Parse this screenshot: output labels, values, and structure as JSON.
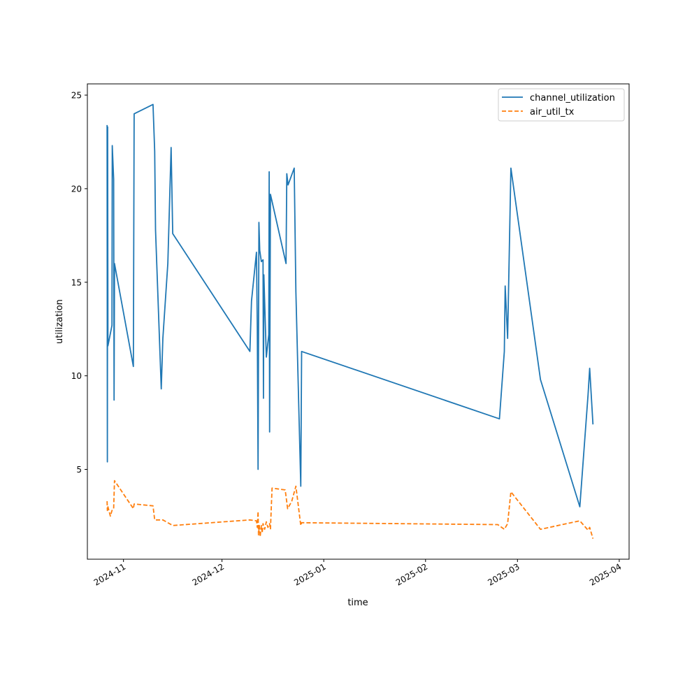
{
  "chart_data": {
    "type": "line",
    "title": "",
    "xlabel": "time",
    "ylabel": "utilization",
    "xlim": [
      "2024-10-21",
      "2025-04-04"
    ],
    "ylim": [
      0.2,
      25.6
    ],
    "x_ticks": [
      {
        "date": "2024-11-01",
        "label": "2024-11"
      },
      {
        "date": "2024-12-01",
        "label": "2024-12"
      },
      {
        "date": "2025-01-01",
        "label": "2025-01"
      },
      {
        "date": "2025-02-01",
        "label": "2025-02"
      },
      {
        "date": "2025-03-01",
        "label": "2025-03"
      },
      {
        "date": "2025-04-01",
        "label": "2025-04"
      }
    ],
    "y_ticks": [
      5,
      10,
      15,
      20,
      25
    ],
    "grid": false,
    "legend_position": "top-right",
    "series": [
      {
        "name": "channel_utilization",
        "color": "#1f77b4",
        "style": "solid",
        "points": [
          [
            "2024-10-27T00:00",
            23.4
          ],
          [
            "2024-10-27T02:00",
            5.4
          ],
          [
            "2024-10-27T04:00",
            23.3
          ],
          [
            "2024-10-27T06:00",
            11.6
          ],
          [
            "2024-10-28T12:00",
            12.7
          ],
          [
            "2024-10-28T14:00",
            22.3
          ],
          [
            "2024-10-29T00:00",
            20.5
          ],
          [
            "2024-10-29T03:00",
            8.7
          ],
          [
            "2024-10-29T06:00",
            16.0
          ],
          [
            "2024-11-04T00:00",
            10.5
          ],
          [
            "2024-11-04T06:00",
            24.0
          ],
          [
            "2024-11-10T00:00",
            24.5
          ],
          [
            "2024-11-10T12:00",
            22.0
          ],
          [
            "2024-11-10T18:00",
            17.8
          ],
          [
            "2024-11-12T12:00",
            9.3
          ],
          [
            "2024-11-13T00:00",
            12.0
          ],
          [
            "2024-11-14T12:00",
            16.0
          ],
          [
            "2024-11-15T12:00",
            22.2
          ],
          [
            "2024-11-16T00:00",
            17.6
          ],
          [
            "2024-12-09T12:00",
            11.3
          ],
          [
            "2024-12-10T00:00",
            14.0
          ],
          [
            "2024-12-11T12:00",
            16.6
          ],
          [
            "2024-12-11T18:00",
            12.6
          ],
          [
            "2024-12-12T00:00",
            5.0
          ],
          [
            "2024-12-12T06:00",
            18.2
          ],
          [
            "2024-12-12T12:00",
            16.7
          ],
          [
            "2024-12-13T00:00",
            16.1
          ],
          [
            "2024-12-13T12:00",
            16.2
          ],
          [
            "2024-12-13T15:00",
            8.8
          ],
          [
            "2024-12-13T18:00",
            15.4
          ],
          [
            "2024-12-14T00:00",
            14.0
          ],
          [
            "2024-12-14T12:00",
            11.0
          ],
          [
            "2024-12-15T06:00",
            12.2
          ],
          [
            "2024-12-15T09:00",
            20.9
          ],
          [
            "2024-12-15T12:00",
            7.0
          ],
          [
            "2024-12-15T18:00",
            19.7
          ],
          [
            "2024-12-20T12:00",
            16.0
          ],
          [
            "2024-12-20T18:00",
            20.8
          ],
          [
            "2024-12-21T03:00",
            20.2
          ],
          [
            "2024-12-23T00:00",
            21.1
          ],
          [
            "2024-12-23T12:00",
            14.5
          ],
          [
            "2024-12-25T00:00",
            4.1
          ],
          [
            "2024-12-25T06:00",
            11.3
          ],
          [
            "2025-02-23T12:00",
            7.7
          ],
          [
            "2025-02-25T00:00",
            11.3
          ],
          [
            "2025-02-25T06:00",
            14.8
          ],
          [
            "2025-02-26T00:00",
            12.0
          ],
          [
            "2025-02-27T00:00",
            21.1
          ],
          [
            "2025-03-08T00:00",
            9.8
          ],
          [
            "2025-03-20T00:00",
            3.0
          ],
          [
            "2025-03-22T12:00",
            9.0
          ],
          [
            "2025-03-23T00:00",
            10.4
          ],
          [
            "2025-03-24T00:00",
            7.4
          ]
        ]
      },
      {
        "name": "air_util_tx",
        "color": "#ff7f0e",
        "style": "dashed",
        "points": [
          [
            "2024-10-27T00:00",
            3.3
          ],
          [
            "2024-10-27T02:00",
            2.8
          ],
          [
            "2024-10-27T06:00",
            3.0
          ],
          [
            "2024-10-28T00:00",
            2.5
          ],
          [
            "2024-10-28T12:00",
            2.8
          ],
          [
            "2024-10-29T00:00",
            2.9
          ],
          [
            "2024-10-29T06:00",
            4.4
          ],
          [
            "2024-11-04T00:00",
            2.9
          ],
          [
            "2024-11-04T06:00",
            3.15
          ],
          [
            "2024-11-10T00:00",
            3.05
          ],
          [
            "2024-11-10T12:00",
            2.3
          ],
          [
            "2024-11-13T00:00",
            2.3
          ],
          [
            "2024-11-16T00:00",
            2.0
          ],
          [
            "2024-12-09T12:00",
            2.3
          ],
          [
            "2024-12-11T12:00",
            2.25
          ],
          [
            "2024-12-11T18:00",
            1.9
          ],
          [
            "2024-12-12T00:00",
            2.75
          ],
          [
            "2024-12-12T03:00",
            1.5
          ],
          [
            "2024-12-12T09:00",
            2.0
          ],
          [
            "2024-12-12T15:00",
            1.4
          ],
          [
            "2024-12-13T00:00",
            2.0
          ],
          [
            "2024-12-13T06:00",
            1.6
          ],
          [
            "2024-12-13T12:00",
            2.1
          ],
          [
            "2024-12-14T00:00",
            1.8
          ],
          [
            "2024-12-14T12:00",
            2.2
          ],
          [
            "2024-12-15T00:00",
            1.9
          ],
          [
            "2024-12-15T12:00",
            2.1
          ],
          [
            "2024-12-15T18:00",
            1.8
          ],
          [
            "2024-12-16T06:00",
            4.0
          ],
          [
            "2024-12-20T06:00",
            3.9
          ],
          [
            "2024-12-21T00:00",
            2.9
          ],
          [
            "2024-12-22T06:00",
            3.3
          ],
          [
            "2024-12-23T12:00",
            4.1
          ],
          [
            "2024-12-25T00:00",
            2.0
          ],
          [
            "2024-12-25T06:00",
            2.15
          ],
          [
            "2025-02-23T00:00",
            2.05
          ],
          [
            "2025-02-25T00:00",
            1.8
          ],
          [
            "2025-02-26T00:00",
            2.1
          ],
          [
            "2025-02-27T00:00",
            3.8
          ],
          [
            "2025-03-08T00:00",
            1.8
          ],
          [
            "2025-03-20T00:00",
            2.25
          ],
          [
            "2025-03-22T12:00",
            1.75
          ],
          [
            "2025-03-23T00:00",
            1.9
          ],
          [
            "2025-03-24T00:00",
            1.3
          ]
        ]
      }
    ]
  }
}
